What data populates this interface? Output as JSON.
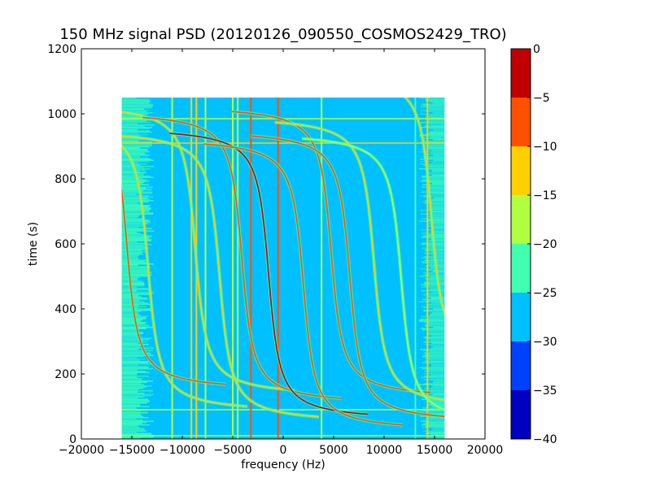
{
  "chart_data": {
    "type": "heatmap",
    "title": "150 MHz signal PSD (20120126_090550_COSMOS2429_TRO)",
    "xlabel": "frequency (Hz)",
    "ylabel": "time (s)",
    "xlim": [
      -20000,
      20000
    ],
    "ylim": [
      0,
      1200
    ],
    "xticks": [
      "−20000",
      "−15000",
      "−10000",
      "−5000",
      "0",
      "5000",
      "10000",
      "15000",
      "20000"
    ],
    "xtick_values": [
      -20000,
      -15000,
      -10000,
      -5000,
      0,
      5000,
      10000,
      15000,
      20000
    ],
    "yticks": [
      "0",
      "200",
      "400",
      "600",
      "800",
      "1000",
      "1200"
    ],
    "ytick_values": [
      0,
      200,
      400,
      600,
      800,
      1000,
      1200
    ],
    "data_extent": {
      "freq": [
        -16000,
        16000
      ],
      "time": [
        0,
        1050
      ]
    },
    "background_level_db": -27,
    "colorbar": {
      "levels": [
        -40,
        -35,
        -30,
        -25,
        -20,
        -15,
        -10,
        -5,
        0
      ],
      "tick_labels": [
        "−40",
        "−35",
        "−30",
        "−25",
        "−20",
        "−15",
        "−10",
        "−5",
        "0"
      ],
      "colors": [
        "#0000c0",
        "#0040ff",
        "#00c0ff",
        "#40ffb0",
        "#b0ff40",
        "#ffd000",
        "#ff5000",
        "#c00000"
      ]
    },
    "doppler_traces": [
      {
        "center_freq": -13400,
        "center_time": 532,
        "level_db": -12
      },
      {
        "center_freq": -15500,
        "center_time": 600,
        "level_db": -8
      },
      {
        "center_freq": -8700,
        "center_time": 582,
        "level_db": -14
      },
      {
        "center_freq": -6300,
        "center_time": 500,
        "level_db": -14
      },
      {
        "center_freq": -4100,
        "center_time": 557,
        "level_db": -8
      },
      {
        "center_freq": -1450,
        "center_time": 508,
        "level_db": -5
      },
      {
        "center_freq": 2000,
        "center_time": 475,
        "level_db": -8
      },
      {
        "center_freq": 4750,
        "center_time": 575,
        "level_db": -6
      },
      {
        "center_freq": 6600,
        "center_time": 500,
        "level_db": -7
      },
      {
        "center_freq": 9000,
        "center_time": 542,
        "level_db": -14
      },
      {
        "center_freq": 11700,
        "center_time": 492,
        "level_db": -17
      },
      {
        "center_freq": 14700,
        "center_time": 682,
        "level_db": -13
      }
    ],
    "constant_lines_freq": [
      {
        "freq": -11000,
        "level_db": -20
      },
      {
        "freq": -9100,
        "level_db": -15
      },
      {
        "freq": -8600,
        "level_db": -15
      },
      {
        "freq": -7700,
        "level_db": -20
      },
      {
        "freq": -5000,
        "level_db": -20
      },
      {
        "freq": -4500,
        "level_db": -20
      },
      {
        "freq": -3200,
        "level_db": -9
      },
      {
        "freq": -500,
        "level_db": -6
      },
      {
        "freq": 3800,
        "level_db": -18
      },
      {
        "freq": 13100,
        "level_db": -22
      },
      {
        "freq": 14300,
        "level_db": -14
      }
    ],
    "constant_lines_time": [
      {
        "time": 985,
        "level_db": -20
      },
      {
        "time": 910,
        "level_db": -14
      },
      {
        "time": 90,
        "level_db": -20
      },
      {
        "time": 10,
        "level_db": -16
      }
    ]
  }
}
